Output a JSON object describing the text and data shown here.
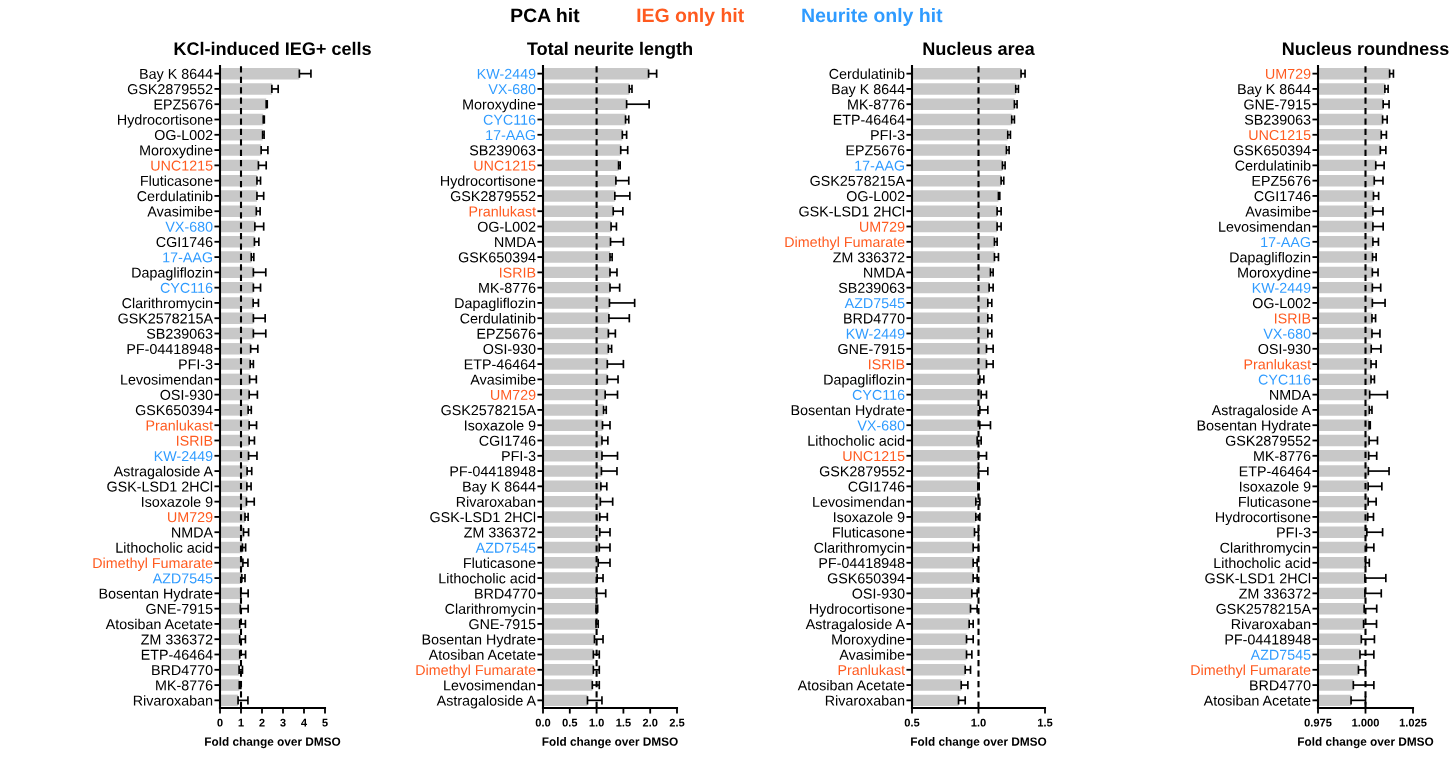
{
  "chart_data": [
    {
      "type": "other",
      "series": [
        {
          "name": "PCA hit",
          "color": "#000000"
        },
        {
          "name": "IEG only hit",
          "color": "#ff5a1f"
        },
        {
          "name": "Neurite only hit",
          "color": "#2f9bff"
        }
      ]
    },
    {
      "type": "bar",
      "orientation": "horizontal",
      "title": "KCl-induced IEG+ cells",
      "xlabel": "Fold change over DMSO",
      "xlim": [
        0,
        5
      ],
      "xticks": [
        0,
        1,
        2,
        3,
        4,
        5
      ],
      "ref_lines": [
        {
          "axis": "x",
          "value": 1,
          "line_style": "dashed",
          "color": "#000000"
        }
      ],
      "categories": [
        "Bay K 8644",
        "GSK2879552",
        "EPZ5676",
        "Hydrocortisone",
        "OG-L002",
        "Moroxydine",
        "UNC1215",
        "Fluticasone",
        "Cerdulatinib",
        "Avasimibe",
        "VX-680",
        "CGI1746",
        "17-AAG",
        "Dapagliflozin",
        "CYC116",
        "Clarithromycin",
        "GSK2578215A",
        "SB239063",
        "PF-04418948",
        "PFI-3",
        "Levosimendan",
        "OSI-930",
        "GSK650394",
        "Pranlukast",
        "ISRIB",
        "KW-2449",
        "Astragaloside A",
        "GSK-LSD1 2HCl",
        "Isoxazole 9",
        "UM729",
        "NMDA",
        "Lithocholic acid",
        "Dimethyl Fumarate",
        "AZD7545",
        "Bosentan Hydrate",
        "GNE-7915",
        "Atosiban Acetate",
        "ZM 336372",
        "ETP-46464",
        "BRD4770",
        "MK-8776",
        "Rivaroxaban"
      ],
      "series": [
        {
          "color": "#c8c8c8",
          "values": [
            3.78,
            2.47,
            2.2,
            2.06,
            2.03,
            1.96,
            null,
            1.76,
            1.76,
            1.73,
            null,
            1.64,
            null,
            1.59,
            null,
            1.58,
            1.59,
            1.59,
            1.46,
            1.44,
            1.41,
            1.39,
            1.34,
            null,
            null,
            null,
            1.29,
            1.28,
            1.26,
            null,
            1.12,
            1.07,
            null,
            null,
            0.99,
            0.97,
            0.94,
            0.94,
            0.94,
            0.91,
            0.92,
            0.86
          ],
          "errors": [
            [
              3.78,
              4.33
            ],
            [
              2.47,
              2.77
            ],
            [
              2.2,
              2.25
            ],
            [
              2.06,
              2.11
            ],
            [
              2.03,
              2.1
            ],
            [
              1.96,
              2.28
            ],
            null,
            [
              1.76,
              1.93
            ],
            [
              1.76,
              2.08
            ],
            [
              1.73,
              1.91
            ],
            null,
            [
              1.64,
              1.85
            ],
            null,
            [
              1.59,
              2.18
            ],
            null,
            [
              1.58,
              1.83
            ],
            [
              1.59,
              2.15
            ],
            [
              1.59,
              2.18
            ],
            [
              1.46,
              1.8
            ],
            [
              1.44,
              1.59
            ],
            [
              1.41,
              1.73
            ],
            [
              1.39,
              1.78
            ],
            [
              1.34,
              1.49
            ],
            null,
            null,
            null,
            [
              1.29,
              1.51
            ],
            [
              1.28,
              1.48
            ],
            [
              1.26,
              1.63
            ],
            null,
            [
              1.12,
              1.36
            ],
            [
              1.07,
              1.22
            ],
            null,
            null,
            [
              0.99,
              1.34
            ],
            [
              0.97,
              1.34
            ],
            [
              0.94,
              1.21
            ],
            [
              0.94,
              1.21
            ],
            [
              0.94,
              1.22
            ],
            [
              0.91,
              1.07
            ],
            [
              0.92,
              0.99
            ],
            [
              0.86,
              1.33
            ]
          ]
        },
        {
          "color": "#c8c8c8",
          "values": [
            null,
            null,
            null,
            null,
            null,
            null,
            1.83,
            null,
            null,
            null,
            null,
            null,
            null,
            null,
            null,
            null,
            null,
            null,
            null,
            null,
            null,
            null,
            null,
            1.39,
            1.39,
            null,
            null,
            null,
            null,
            1.19,
            null,
            null,
            1.09,
            null,
            null,
            null,
            null,
            null,
            null,
            null,
            null,
            null
          ],
          "errors": [
            null,
            null,
            null,
            null,
            null,
            null,
            [
              1.83,
              2.2
            ],
            null,
            null,
            null,
            null,
            null,
            null,
            null,
            null,
            null,
            null,
            null,
            null,
            null,
            null,
            null,
            null,
            [
              1.39,
              1.74
            ],
            [
              1.39,
              1.64
            ],
            null,
            null,
            null,
            null,
            [
              1.19,
              1.34
            ],
            null,
            null,
            [
              1.09,
              1.33
            ],
            null,
            null,
            null,
            null,
            null,
            null,
            null,
            null,
            null
          ]
        },
        {
          "color": "#c8c8c8",
          "values": [
            null,
            null,
            null,
            null,
            null,
            null,
            null,
            null,
            null,
            null,
            1.66,
            null,
            1.49,
            null,
            1.59,
            null,
            null,
            null,
            null,
            null,
            null,
            null,
            null,
            null,
            null,
            1.36,
            null,
            null,
            null,
            null,
            null,
            null,
            null,
            1.04,
            null,
            null,
            null,
            null,
            null,
            null,
            null,
            null
          ],
          "errors": [
            null,
            null,
            null,
            null,
            null,
            null,
            null,
            null,
            null,
            null,
            [
              1.66,
              2.08
            ],
            null,
            [
              1.49,
              1.61
            ],
            null,
            [
              1.59,
              1.93
            ],
            null,
            null,
            null,
            null,
            null,
            null,
            null,
            null,
            null,
            null,
            [
              1.36,
              1.76
            ],
            null,
            null,
            null,
            null,
            null,
            null,
            null,
            [
              1.04,
              1.19
            ],
            null,
            null,
            null,
            null,
            null,
            null,
            null,
            null
          ]
        }
      ]
    },
    {
      "type": "bar",
      "orientation": "horizontal",
      "title": "Total neurite length",
      "xlabel": "Fold change over DMSO",
      "xlim": [
        0,
        2.5
      ],
      "xticks": [
        {
          "value": 0,
          "label": "0.0"
        },
        0.5,
        {
          "value": 1,
          "label": "1.0"
        },
        1.5,
        {
          "value": 2,
          "label": "2.0"
        },
        2.5
      ],
      "ref_lines": [
        {
          "axis": "x",
          "value": 1,
          "line_style": "dashed",
          "color": "#000000"
        }
      ],
      "categories": [
        "KW-2449",
        "VX-680",
        "Moroxydine",
        "CYC116",
        "17-AAG",
        "SB239063",
        "UNC1215",
        "Hydrocortisone",
        "GSK2879552",
        "Pranlukast",
        "OG-L002",
        "NMDA",
        "GSK650394",
        "ISRIB",
        "MK-8776",
        "Dapagliflozin",
        "Cerdulatinib",
        "EPZ5676",
        "OSI-930",
        "ETP-46464",
        "Avasimibe",
        "UM729",
        "GSK2578215A",
        "Isoxazole 9",
        "CGI1746",
        "PFI-3",
        "PF-04418948",
        "Bay K 8644",
        "Rivaroxaban",
        "GSK-LSD1 2HCl",
        "ZM 336372",
        "AZD7545",
        "Fluticasone",
        "Lithocholic acid",
        "BRD4770",
        "Clarithromycin",
        "GNE-7915",
        "Bosentan Hydrate",
        "Atosiban Acetate",
        "Dimethyl Fumarate",
        "Levosimendan",
        "Astragaloside A"
      ],
      "series": [
        {
          "color": "#c8c8c8",
          "values": [
            null,
            null,
            1.56,
            null,
            null,
            1.45,
            null,
            1.36,
            1.34,
            null,
            1.27,
            1.26,
            1.25,
            null,
            1.25,
            1.24,
            1.23,
            1.22,
            1.22,
            1.2,
            1.2,
            null,
            1.13,
            1.11,
            1.1,
            1.1,
            1.09,
            1.08,
            1.07,
            1.06,
            1.06,
            null,
            1.03,
            1.01,
            1.0,
            0.99,
            0.99,
            0.96,
            0.94,
            null,
            0.92,
            0.83
          ],
          "errors": [
            null,
            null,
            [
              1.56,
              1.98
            ],
            null,
            null,
            [
              1.45,
              1.58
            ],
            null,
            [
              1.36,
              1.6
            ],
            [
              1.34,
              1.62
            ],
            null,
            [
              1.27,
              1.37
            ],
            [
              1.26,
              1.5
            ],
            [
              1.25,
              1.29
            ],
            null,
            [
              1.25,
              1.43
            ],
            [
              1.24,
              1.71
            ],
            [
              1.23,
              1.61
            ],
            [
              1.22,
              1.35
            ],
            [
              1.22,
              1.28
            ],
            [
              1.2,
              1.5
            ],
            [
              1.2,
              1.4
            ],
            null,
            [
              1.13,
              1.18
            ],
            [
              1.11,
              1.25
            ],
            [
              1.1,
              1.21
            ],
            [
              1.1,
              1.39
            ],
            [
              1.09,
              1.38
            ],
            [
              1.08,
              1.19
            ],
            [
              1.07,
              1.3
            ],
            [
              1.06,
              1.2
            ],
            [
              1.06,
              1.25
            ],
            null,
            [
              1.03,
              1.25
            ],
            [
              1.01,
              1.12
            ],
            [
              1.0,
              1.17
            ],
            [
              0.99,
              1.02
            ],
            [
              0.99,
              1.03
            ],
            [
              0.96,
              1.12
            ],
            [
              0.94,
              1.05
            ],
            null,
            [
              0.92,
              1.05
            ],
            [
              0.83,
              1.1
            ]
          ]
        },
        {
          "color": "#c8c8c8",
          "values": [
            null,
            null,
            null,
            null,
            null,
            null,
            1.41,
            null,
            null,
            1.31,
            null,
            null,
            null,
            1.25,
            null,
            null,
            null,
            null,
            null,
            null,
            null,
            1.16,
            null,
            null,
            null,
            null,
            null,
            null,
            null,
            null,
            null,
            null,
            null,
            null,
            null,
            null,
            null,
            null,
            null,
            0.94,
            null,
            null
          ],
          "errors": [
            null,
            null,
            null,
            null,
            null,
            null,
            [
              1.41,
              1.44
            ],
            null,
            null,
            [
              1.31,
              1.49
            ],
            null,
            null,
            null,
            [
              1.25,
              1.38
            ],
            null,
            null,
            null,
            null,
            null,
            null,
            null,
            [
              1.16,
              1.39
            ],
            null,
            null,
            null,
            null,
            null,
            null,
            null,
            null,
            null,
            null,
            null,
            null,
            null,
            null,
            null,
            null,
            null,
            [
              0.94,
              1.05
            ],
            null,
            null
          ]
        },
        {
          "color": "#c8c8c8",
          "values": [
            1.97,
            1.61,
            null,
            1.54,
            1.48,
            null,
            null,
            null,
            null,
            null,
            null,
            null,
            null,
            null,
            null,
            null,
            null,
            null,
            null,
            null,
            null,
            null,
            null,
            null,
            null,
            null,
            null,
            null,
            null,
            null,
            null,
            1.05,
            null,
            null,
            null,
            null,
            null,
            null,
            null,
            null,
            null,
            null
          ],
          "errors": [
            [
              1.97,
              2.12
            ],
            [
              1.61,
              1.66
            ],
            null,
            [
              1.54,
              1.6
            ],
            [
              1.48,
              1.56
            ],
            null,
            null,
            null,
            null,
            null,
            null,
            null,
            null,
            null,
            null,
            null,
            null,
            null,
            null,
            null,
            null,
            null,
            null,
            null,
            null,
            null,
            null,
            null,
            null,
            null,
            null,
            [
              1.05,
              1.25
            ],
            null,
            null,
            null,
            null,
            null,
            null,
            null,
            null,
            null,
            null
          ]
        }
      ]
    },
    {
      "type": "bar",
      "orientation": "horizontal",
      "title": "Nucleus area",
      "xlabel": "Fold change over DMSO",
      "xlim": [
        0.5,
        1.5
      ],
      "xticks": [
        0.5,
        {
          "value": 1,
          "label": "1.0"
        },
        1.5
      ],
      "ref_lines": [
        {
          "axis": "x",
          "value": 1,
          "line_style": "dashed",
          "color": "#000000"
        }
      ],
      "categories": [
        "Cerdulatinib",
        "Bay K 8644",
        "MK-8776",
        "ETP-46464",
        "PFI-3",
        "EPZ5676",
        "17-AAG",
        "GSK2578215A",
        "OG-L002",
        "GSK-LSD1 2HCl",
        "UM729",
        "Dimethyl Fumarate",
        "ZM 336372",
        "NMDA",
        "SB239063",
        "AZD7545",
        "BRD4770",
        "KW-2449",
        "GNE-7915",
        "ISRIB",
        "Dapagliflozin",
        "CYC116",
        "Bosentan Hydrate",
        "VX-680",
        "Lithocholic acid",
        "UNC1215",
        "GSK2879552",
        "CGI1746",
        "Levosimendan",
        "Isoxazole 9",
        "Fluticasone",
        "Clarithromycin",
        "PF-04418948",
        "GSK650394",
        "OSI-930",
        "Hydrocortisone",
        "Astragaloside A",
        "Moroxydine",
        "Avasimibe",
        "Pranlukast",
        "Atosiban Acetate",
        "Rivaroxaban"
      ],
      "series": [
        {
          "color": "#c8c8c8",
          "values": [
            1.32,
            1.28,
            1.27,
            1.25,
            1.22,
            1.21,
            null,
            1.17,
            1.15,
            1.14,
            null,
            null,
            1.12,
            1.09,
            1.08,
            null,
            1.07,
            null,
            1.06,
            null,
            1.01,
            null,
            1.01,
            null,
            0.99,
            null,
            1.0,
            0.995,
            0.98,
            0.98,
            0.97,
            0.96,
            0.96,
            0.96,
            0.95,
            0.94,
            0.93,
            0.91,
            0.91,
            null,
            0.87,
            0.85
          ],
          "errors": [
            [
              1.32,
              1.35
            ],
            [
              1.28,
              1.3
            ],
            [
              1.27,
              1.29
            ],
            [
              1.25,
              1.27
            ],
            [
              1.22,
              1.24
            ],
            [
              1.21,
              1.23
            ],
            null,
            [
              1.17,
              1.19
            ],
            [
              1.15,
              1.16
            ],
            [
              1.14,
              1.17
            ],
            null,
            null,
            [
              1.12,
              1.15
            ],
            [
              1.09,
              1.11
            ],
            [
              1.08,
              1.11
            ],
            null,
            [
              1.07,
              1.1
            ],
            null,
            [
              1.06,
              1.11
            ],
            null,
            [
              1.01,
              1.04
            ],
            null,
            [
              1.01,
              1.07
            ],
            null,
            [
              0.99,
              1.02
            ],
            null,
            [
              1.0,
              1.07
            ],
            [
              0.995,
              1.005
            ],
            [
              0.98,
              1.01
            ],
            [
              0.98,
              1.01
            ],
            [
              0.97,
              1.0
            ],
            [
              0.96,
              1.0
            ],
            [
              0.96,
              0.99
            ],
            [
              0.96,
              0.99
            ],
            [
              0.95,
              0.99
            ],
            [
              0.94,
              0.99
            ],
            [
              0.93,
              0.96
            ],
            [
              0.91,
              0.96
            ],
            [
              0.91,
              0.95
            ],
            null,
            [
              0.87,
              0.92
            ],
            [
              0.85,
              0.9
            ]
          ]
        },
        {
          "color": "#c8c8c8",
          "values": [
            null,
            null,
            null,
            null,
            null,
            null,
            null,
            null,
            null,
            null,
            1.14,
            1.12,
            null,
            null,
            null,
            null,
            null,
            null,
            null,
            1.06,
            null,
            null,
            null,
            null,
            null,
            1.0,
            null,
            null,
            null,
            null,
            null,
            null,
            null,
            null,
            null,
            null,
            null,
            null,
            null,
            0.9,
            null,
            null
          ],
          "errors": [
            null,
            null,
            null,
            null,
            null,
            null,
            null,
            null,
            null,
            null,
            [
              1.14,
              1.17
            ],
            [
              1.12,
              1.14
            ],
            null,
            null,
            null,
            null,
            null,
            null,
            null,
            [
              1.06,
              1.11
            ],
            null,
            null,
            null,
            null,
            null,
            [
              1.0,
              1.06
            ],
            null,
            null,
            null,
            null,
            null,
            null,
            null,
            null,
            null,
            null,
            null,
            null,
            null,
            [
              0.9,
              0.94
            ],
            null,
            null
          ]
        },
        {
          "color": "#c8c8c8",
          "values": [
            null,
            null,
            null,
            null,
            null,
            null,
            1.18,
            null,
            null,
            null,
            null,
            null,
            null,
            null,
            null,
            1.07,
            null,
            1.07,
            null,
            null,
            null,
            1.02,
            null,
            1.01,
            null,
            null,
            null,
            null,
            null,
            null,
            null,
            null,
            null,
            null,
            null,
            null,
            null,
            null,
            null,
            null,
            null,
            null
          ],
          "errors": [
            null,
            null,
            null,
            null,
            null,
            null,
            [
              1.18,
              1.2
            ],
            null,
            null,
            null,
            null,
            null,
            null,
            null,
            null,
            [
              1.07,
              1.1
            ],
            null,
            [
              1.07,
              1.1
            ],
            null,
            null,
            null,
            [
              1.02,
              1.06
            ],
            null,
            [
              1.01,
              1.09
            ],
            null,
            null,
            null,
            null,
            null,
            null,
            null,
            null,
            null,
            null,
            null,
            null,
            null,
            null,
            null,
            null,
            null,
            null
          ]
        }
      ]
    },
    {
      "type": "bar",
      "orientation": "horizontal",
      "title": "Nucleus roundness",
      "xlabel": "Fold change over DMSO",
      "xlim": [
        0.975,
        1.025
      ],
      "xticks": [
        0.975,
        {
          "value": 1,
          "label": "1.000"
        },
        1.025
      ],
      "ref_lines": [
        {
          "axis": "x",
          "value": 1,
          "line_style": "dashed",
          "color": "#000000"
        }
      ],
      "categories": [
        "UM729",
        "Bay K 8644",
        "GNE-7915",
        "SB239063",
        "UNC1215",
        "GSK650394",
        "Cerdulatinib",
        "EPZ5676",
        "CGI1746",
        "Avasimibe",
        "Levosimendan",
        "17-AAG",
        "Dapagliflozin",
        "Moroxydine",
        "KW-2449",
        "OG-L002",
        "ISRIB",
        "VX-680",
        "OSI-930",
        "Pranlukast",
        "CYC116",
        "NMDA",
        "Astragaloside A",
        "Bosentan Hydrate",
        "GSK2879552",
        "MK-8776",
        "ETP-46464",
        "Isoxazole 9",
        "Fluticasone",
        "Hydrocortisone",
        "PFI-3",
        "Clarithromycin",
        "Lithocholic acid",
        "GSK-LSD1 2HCl",
        "ZM 336372",
        "GSK2578215A",
        "Rivaroxaban",
        "PF-04418948",
        "AZD7545",
        "Dimethyl Fumarate",
        "BRD4770",
        "Atosiban Acetate"
      ],
      "series": [
        {
          "color": "#c8c8c8",
          "values": [
            null,
            1.0102,
            1.0093,
            1.009,
            null,
            1.0078,
            1.0054,
            1.0046,
            1.0042,
            1.0039,
            1.0039,
            null,
            1.0037,
            1.0036,
            null,
            1.0036,
            null,
            null,
            1.003,
            null,
            null,
            1.0022,
            1.002,
            1.0019,
            1.0019,
            1.0017,
            1.0015,
            1.0014,
            1.0014,
            1.0012,
            1.0007,
            1.0005,
            1.0,
            0.9997,
            0.9997,
            0.9993,
            0.999,
            0.9978,
            null,
            null,
            0.9936,
            0.9924
          ],
          "errors": [
            null,
            [
              1.0102,
              1.0119
            ],
            [
              1.0093,
              1.0124
            ],
            [
              1.009,
              1.0114
            ],
            null,
            [
              1.0078,
              1.0107
            ],
            [
              1.0054,
              1.0098
            ],
            [
              1.0046,
              1.0092
            ],
            [
              1.0042,
              1.0069
            ],
            [
              1.0039,
              1.0092
            ],
            [
              1.0039,
              1.0093
            ],
            null,
            [
              1.0037,
              1.0056
            ],
            [
              1.0036,
              1.0066
            ],
            null,
            [
              1.0036,
              1.0103
            ],
            null,
            null,
            [
              1.003,
              1.0081
            ],
            null,
            null,
            [
              1.0022,
              1.0115
            ],
            [
              1.002,
              1.0034
            ],
            [
              1.0019,
              1.0025
            ],
            [
              1.0019,
              1.0063
            ],
            [
              1.0017,
              1.0059
            ],
            [
              1.0015,
              1.0124
            ],
            [
              1.0014,
              1.0086
            ],
            [
              1.0014,
              1.0056
            ],
            [
              1.0012,
              1.0042
            ],
            [
              1.0007,
              1.009
            ],
            [
              1.0005,
              1.0044
            ],
            [
              1.0,
              1.002
            ],
            [
              0.9997,
              1.0107
            ],
            [
              0.9997,
              1.0083
            ],
            [
              0.9993,
              1.0059
            ],
            [
              0.999,
              1.0058
            ],
            [
              0.9978,
              1.0047
            ],
            null,
            null,
            [
              0.9936,
              1.0044
            ],
            [
              0.9924,
              1.0
            ]
          ]
        },
        {
          "color": "#c8c8c8",
          "values": [
            1.0127,
            null,
            null,
            null,
            1.0083,
            null,
            null,
            null,
            null,
            null,
            null,
            null,
            null,
            null,
            null,
            null,
            1.0034,
            null,
            null,
            1.0029,
            null,
            null,
            null,
            null,
            null,
            null,
            null,
            null,
            null,
            null,
            null,
            null,
            null,
            null,
            null,
            null,
            null,
            null,
            null,
            0.9963,
            null,
            null
          ],
          "errors": [
            [
              1.0127,
              1.0147
            ],
            null,
            null,
            null,
            [
              1.0083,
              1.011
            ],
            null,
            null,
            null,
            null,
            null,
            null,
            null,
            null,
            null,
            null,
            null,
            [
              1.0034,
              1.0053
            ],
            null,
            null,
            [
              1.0029,
              1.0056
            ],
            null,
            null,
            null,
            null,
            null,
            null,
            null,
            null,
            null,
            null,
            null,
            null,
            null,
            null,
            null,
            null,
            null,
            null,
            null,
            [
              0.9963,
              1.0
            ],
            null,
            null
          ]
        },
        {
          "color": "#c8c8c8",
          "values": [
            null,
            null,
            null,
            null,
            null,
            null,
            null,
            null,
            null,
            null,
            null,
            1.0039,
            null,
            null,
            1.0036,
            null,
            null,
            1.0034,
            null,
            null,
            1.0029,
            null,
            null,
            null,
            null,
            null,
            null,
            null,
            null,
            null,
            null,
            null,
            null,
            null,
            null,
            null,
            null,
            null,
            0.9971,
            null,
            null,
            null
          ],
          "errors": [
            null,
            null,
            null,
            null,
            null,
            null,
            null,
            null,
            null,
            null,
            null,
            [
              1.0039,
              1.0068
            ],
            null,
            null,
            [
              1.0036,
              1.008
            ],
            null,
            null,
            [
              1.0034,
              1.0076
            ],
            null,
            null,
            [
              1.0029,
              1.0047
            ],
            null,
            null,
            null,
            null,
            null,
            null,
            null,
            null,
            null,
            null,
            null,
            null,
            null,
            null,
            null,
            null,
            null,
            [
              0.9971,
              1.0044
            ],
            null,
            null,
            null
          ]
        }
      ]
    }
  ]
}
